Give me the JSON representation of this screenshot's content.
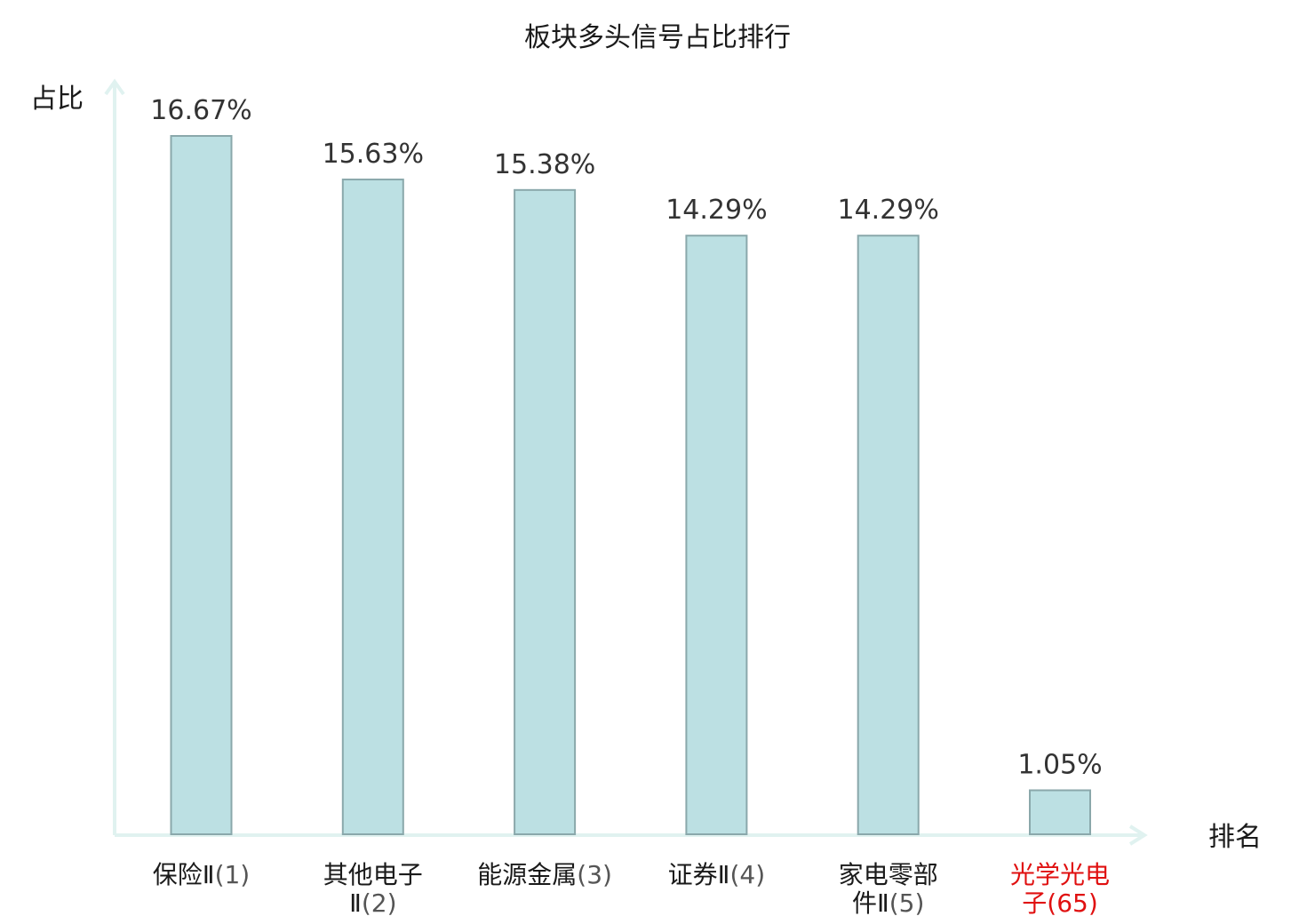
{
  "chart_data": {
    "type": "bar",
    "title": "板块多头信号占比排行",
    "xlabel": "排名",
    "ylabel": "占比",
    "ylim": [
      0,
      17.5
    ],
    "grid": false,
    "legend": "none",
    "categories": [
      {
        "name_lines": [
          "保险Ⅱ"
        ],
        "rank": "(1)",
        "highlight": false
      },
      {
        "name_lines": [
          "其他电子",
          "Ⅱ"
        ],
        "rank": "(2)",
        "highlight": false
      },
      {
        "name_lines": [
          "能源金属"
        ],
        "rank": "(3)",
        "highlight": false
      },
      {
        "name_lines": [
          "证券Ⅱ"
        ],
        "rank": "(4)",
        "highlight": false
      },
      {
        "name_lines": [
          "家电零部",
          "件Ⅱ"
        ],
        "rank": "(5)",
        "highlight": false
      },
      {
        "name_lines": [
          "光学光电",
          "子"
        ],
        "rank": "(65)",
        "highlight": true
      }
    ],
    "values": [
      16.67,
      15.63,
      15.38,
      14.29,
      14.29,
      1.05
    ],
    "value_labels": [
      "16.67%",
      "15.63%",
      "15.38%",
      "14.29%",
      "14.29%",
      "1.05%"
    ]
  },
  "colors": {
    "bar_fill": "#bce0e3",
    "bar_stroke": "#8aa8ab",
    "axis": "#e0f2f0",
    "text": "#1a1a1a",
    "value_text": "#333333",
    "highlight": "#e01010",
    "rank_text": "#555555"
  }
}
